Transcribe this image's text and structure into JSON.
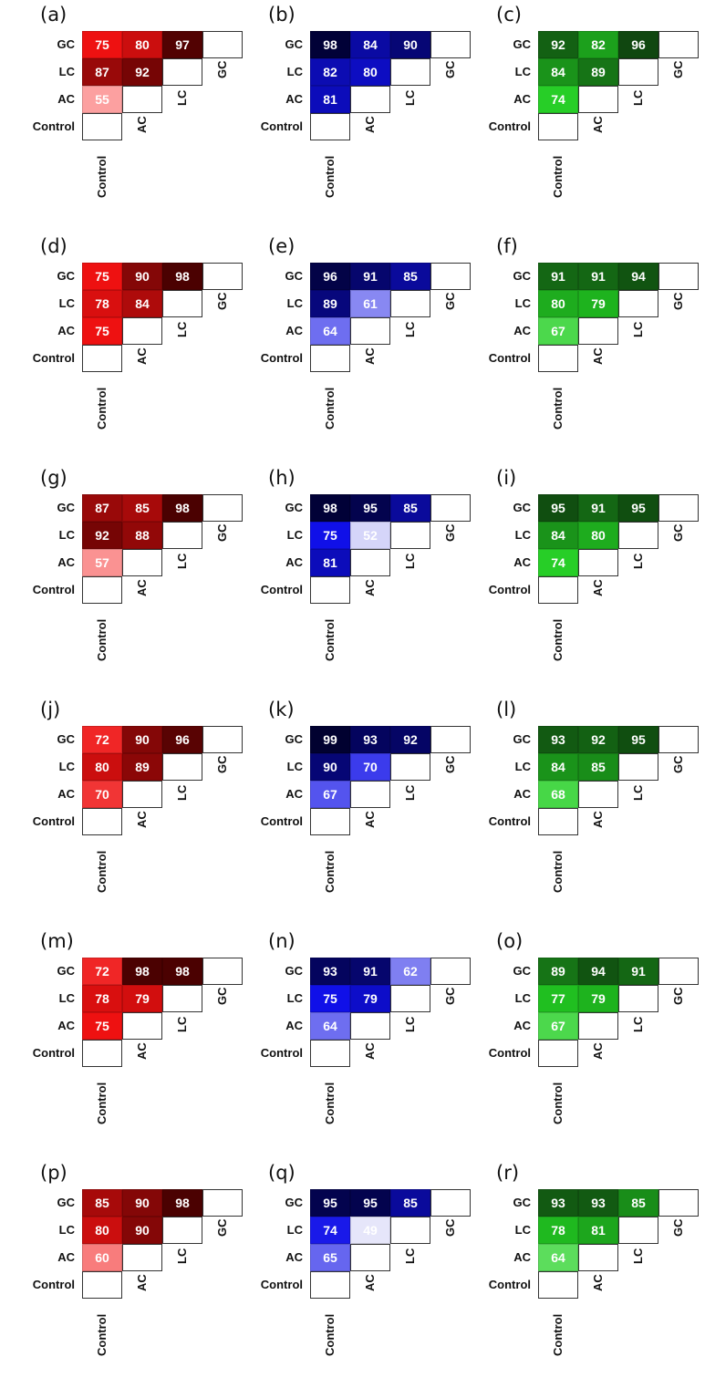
{
  "chart_data": [
    {
      "label": "(a)",
      "type": "heatmap",
      "palette": "red",
      "rows": [
        "GC",
        "LC",
        "AC",
        "Control"
      ],
      "cols": [
        "Control",
        "AC",
        "LC",
        "GC"
      ],
      "values": [
        [
          75,
          80,
          97
        ],
        [
          87,
          92
        ],
        [
          55
        ]
      ]
    },
    {
      "label": "(b)",
      "type": "heatmap",
      "palette": "blue",
      "rows": [
        "GC",
        "LC",
        "AC",
        "Control"
      ],
      "cols": [
        "Control",
        "AC",
        "LC",
        "GC"
      ],
      "values": [
        [
          98,
          84,
          90
        ],
        [
          82,
          80
        ],
        [
          81
        ]
      ]
    },
    {
      "label": "(c)",
      "type": "heatmap",
      "palette": "green",
      "rows": [
        "GC",
        "LC",
        "AC",
        "Control"
      ],
      "cols": [
        "Control",
        "AC",
        "LC",
        "GC"
      ],
      "values": [
        [
          92,
          82,
          96
        ],
        [
          84,
          89
        ],
        [
          74
        ]
      ]
    },
    {
      "label": "(d)",
      "type": "heatmap",
      "palette": "red",
      "rows": [
        "GC",
        "LC",
        "AC",
        "Control"
      ],
      "cols": [
        "Control",
        "AC",
        "LC",
        "GC"
      ],
      "values": [
        [
          75,
          90,
          98
        ],
        [
          78,
          84
        ],
        [
          75
        ]
      ]
    },
    {
      "label": "(e)",
      "type": "heatmap",
      "palette": "blue",
      "rows": [
        "GC",
        "LC",
        "AC",
        "Control"
      ],
      "cols": [
        "Control",
        "AC",
        "LC",
        "GC"
      ],
      "values": [
        [
          96,
          91,
          85
        ],
        [
          89,
          61
        ],
        [
          64
        ]
      ]
    },
    {
      "label": "(f)",
      "type": "heatmap",
      "palette": "green",
      "rows": [
        "GC",
        "LC",
        "AC",
        "Control"
      ],
      "cols": [
        "Control",
        "AC",
        "LC",
        "GC"
      ],
      "values": [
        [
          91,
          91,
          94
        ],
        [
          80,
          79
        ],
        [
          67
        ]
      ]
    },
    {
      "label": "(g)",
      "type": "heatmap",
      "palette": "red",
      "rows": [
        "GC",
        "LC",
        "AC",
        "Control"
      ],
      "cols": [
        "Control",
        "AC",
        "LC",
        "GC"
      ],
      "values": [
        [
          87,
          85,
          98
        ],
        [
          92,
          88
        ],
        [
          57
        ]
      ]
    },
    {
      "label": "(h)",
      "type": "heatmap",
      "palette": "blue",
      "rows": [
        "GC",
        "LC",
        "AC",
        "Control"
      ],
      "cols": [
        "Control",
        "AC",
        "LC",
        "GC"
      ],
      "values": [
        [
          98,
          95,
          85
        ],
        [
          75,
          52
        ],
        [
          81
        ]
      ]
    },
    {
      "label": "(i)",
      "type": "heatmap",
      "palette": "green",
      "rows": [
        "GC",
        "LC",
        "AC",
        "Control"
      ],
      "cols": [
        "Control",
        "AC",
        "LC",
        "GC"
      ],
      "values": [
        [
          95,
          91,
          95
        ],
        [
          84,
          80
        ],
        [
          74
        ]
      ]
    },
    {
      "label": "(j)",
      "type": "heatmap",
      "palette": "red",
      "rows": [
        "GC",
        "LC",
        "AC",
        "Control"
      ],
      "cols": [
        "Control",
        "AC",
        "LC",
        "GC"
      ],
      "values": [
        [
          72,
          90,
          96
        ],
        [
          80,
          89
        ],
        [
          70
        ]
      ]
    },
    {
      "label": "(k)",
      "type": "heatmap",
      "palette": "blue",
      "rows": [
        "GC",
        "LC",
        "AC",
        "Control"
      ],
      "cols": [
        "Control",
        "AC",
        "LC",
        "GC"
      ],
      "values": [
        [
          99,
          93,
          92
        ],
        [
          90,
          70
        ],
        [
          67
        ]
      ]
    },
    {
      "label": "(l)",
      "type": "heatmap",
      "palette": "green",
      "rows": [
        "GC",
        "LC",
        "AC",
        "Control"
      ],
      "cols": [
        "Control",
        "AC",
        "LC",
        "GC"
      ],
      "values": [
        [
          93,
          92,
          95
        ],
        [
          84,
          85
        ],
        [
          68
        ]
      ]
    },
    {
      "label": "(m)",
      "type": "heatmap",
      "palette": "red",
      "rows": [
        "GC",
        "LC",
        "AC",
        "Control"
      ],
      "cols": [
        "Control",
        "AC",
        "LC",
        "GC"
      ],
      "values": [
        [
          72,
          98,
          98
        ],
        [
          78,
          79
        ],
        [
          75
        ]
      ]
    },
    {
      "label": "(n)",
      "type": "heatmap",
      "palette": "blue",
      "rows": [
        "GC",
        "LC",
        "AC",
        "Control"
      ],
      "cols": [
        "Control",
        "AC",
        "LC",
        "GC"
      ],
      "values": [
        [
          93,
          91,
          62
        ],
        [
          75,
          79
        ],
        [
          64
        ]
      ]
    },
    {
      "label": "(o)",
      "type": "heatmap",
      "palette": "green",
      "rows": [
        "GC",
        "LC",
        "AC",
        "Control"
      ],
      "cols": [
        "Control",
        "AC",
        "LC",
        "GC"
      ],
      "values": [
        [
          89,
          94,
          91
        ],
        [
          77,
          79
        ],
        [
          67
        ]
      ]
    },
    {
      "label": "(p)",
      "type": "heatmap",
      "palette": "red",
      "rows": [
        "GC",
        "LC",
        "AC",
        "Control"
      ],
      "cols": [
        "Control",
        "AC",
        "LC",
        "GC"
      ],
      "values": [
        [
          85,
          90,
          98
        ],
        [
          80,
          90
        ],
        [
          60
        ]
      ]
    },
    {
      "label": "(q)",
      "type": "heatmap",
      "palette": "blue",
      "rows": [
        "GC",
        "LC",
        "AC",
        "Control"
      ],
      "cols": [
        "Control",
        "AC",
        "LC",
        "GC"
      ],
      "values": [
        [
          95,
          95,
          85
        ],
        [
          74,
          49
        ],
        [
          65
        ]
      ]
    },
    {
      "label": "(r)",
      "type": "heatmap",
      "palette": "green",
      "rows": [
        "GC",
        "LC",
        "AC",
        "Control"
      ],
      "cols": [
        "Control",
        "AC",
        "LC",
        "GC"
      ],
      "values": [
        [
          93,
          93,
          85
        ],
        [
          78,
          81
        ],
        [
          64
        ]
      ]
    }
  ],
  "colors": {
    "red": {
      "low": "#ffc4c4",
      "mid": "#ee1111",
      "high": "#3d0000"
    },
    "blue": {
      "low": "#e6e6fa",
      "mid": "#1010e8",
      "high": "#000028"
    },
    "green": {
      "low": "#a6f2a6",
      "mid": "#22cc22",
      "high": "#0c2e0c"
    }
  }
}
